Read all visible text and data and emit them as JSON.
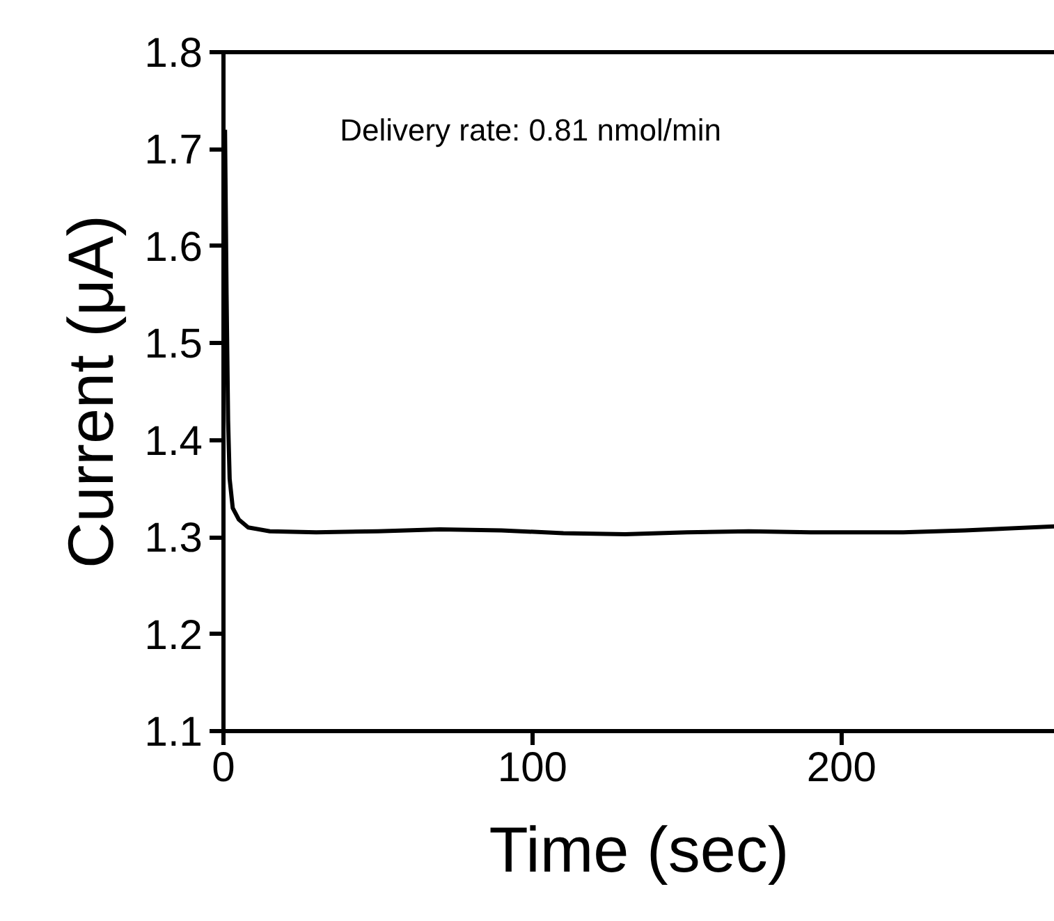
{
  "chart_data": {
    "type": "line",
    "xlabel": "Time (sec)",
    "ylabel": "Current (μA)",
    "annotations": [
      "Delivery rate: 0.81 nmol/min"
    ],
    "x": [
      0.5,
      1,
      1.5,
      2,
      3,
      5,
      8,
      15,
      30,
      50,
      70,
      90,
      110,
      130,
      150,
      170,
      190,
      220,
      240,
      269
    ],
    "series": [
      {
        "color": "#000000",
        "values": [
          1.72,
          1.55,
          1.42,
          1.36,
          1.33,
          1.318,
          1.31,
          1.306,
          1.305,
          1.306,
          1.308,
          1.307,
          1.304,
          1.303,
          1.305,
          1.306,
          1.305,
          1.305,
          1.307,
          1.311
        ]
      }
    ],
    "xlim": [
      0,
      269
    ],
    "ylim": [
      1.1,
      1.8
    ],
    "xticks": [
      0,
      100,
      200
    ],
    "yticks": [
      1.1,
      1.2,
      1.3,
      1.4,
      1.5,
      1.6,
      1.7,
      1.8
    ],
    "grid": false,
    "marker": "none",
    "line_style": "solid"
  }
}
